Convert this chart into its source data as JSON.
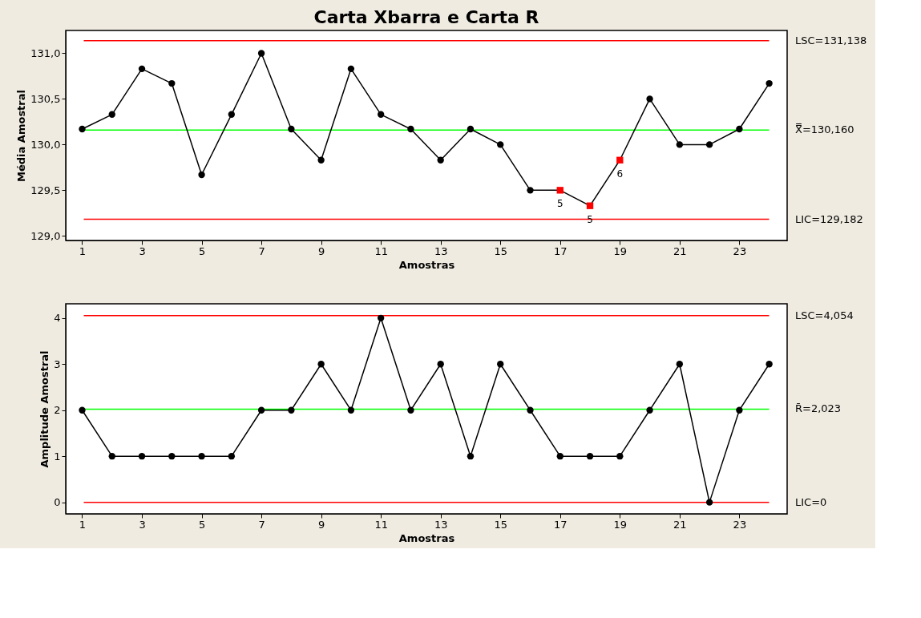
{
  "chart_data": [
    {
      "type": "line",
      "title": "Carta Xbarra e Carta R",
      "xlabel": "Amostras",
      "ylabel": "Média Amostral",
      "x": [
        1,
        2,
        3,
        4,
        5,
        6,
        7,
        8,
        9,
        10,
        11,
        12,
        13,
        14,
        15,
        16,
        17,
        18,
        19,
        20,
        21,
        22,
        23,
        24
      ],
      "series": [
        {
          "color": "#000000",
          "colors": [
            "#000000",
            "#000000",
            "#000000",
            "#000000",
            "#000000",
            "#000000",
            "#000000",
            "#000000",
            "#000000",
            "#000000",
            "#000000",
            "#000000",
            "#000000",
            "#000000",
            "#000000",
            "#000000",
            "#ff0000",
            "#ff0000",
            "#ff0000",
            "#000000",
            "#000000",
            "#000000",
            "#000000",
            "#000000"
          ],
          "values": [
            130.17,
            130.33,
            130.83,
            130.67,
            129.67,
            130.33,
            131.0,
            130.17,
            129.83,
            130.83,
            130.33,
            130.17,
            129.83,
            130.17,
            130.0,
            129.5,
            129.5,
            129.33,
            129.83,
            130.5,
            130.0,
            130.0,
            130.17,
            130.67
          ]
        }
      ],
      "xlim": [
        0.45,
        24.6
      ],
      "xticks": [
        1,
        3,
        5,
        7,
        9,
        11,
        13,
        15,
        17,
        19,
        21,
        23
      ],
      "ylim": [
        128.95,
        131.25
      ],
      "yticks": [
        {
          "value": 129.0,
          "label": "129,0"
        },
        {
          "value": 129.5,
          "label": "129,5"
        },
        {
          "value": 130.0,
          "label": "130,0"
        },
        {
          "value": 130.5,
          "label": "130,5"
        },
        {
          "value": 131.0,
          "label": "131,0"
        }
      ],
      "ref_lines": [
        {
          "axis": "y",
          "value": 131.138,
          "label": "LSC=131,138",
          "color": "#ff0000"
        },
        {
          "axis": "y",
          "value": 130.16,
          "label": "X̿=130,160",
          "color": "#00ff00"
        },
        {
          "axis": "y",
          "value": 129.182,
          "label": "LIC=129,182",
          "color": "#ff0000"
        }
      ],
      "annotations": [
        {
          "text": "5",
          "x": 17,
          "y": 129.5
        },
        {
          "text": "5",
          "x": 18,
          "y": 129.33
        },
        {
          "text": "6",
          "x": 19,
          "y": 129.83
        }
      ],
      "marker": "circle",
      "line_style": "solid"
    },
    {
      "type": "line",
      "xlabel": "Amostras",
      "ylabel": "Amplitude Amostral",
      "x": [
        1,
        2,
        3,
        4,
        5,
        6,
        7,
        8,
        9,
        10,
        11,
        12,
        13,
        14,
        15,
        16,
        17,
        18,
        19,
        20,
        21,
        22,
        23,
        24
      ],
      "series": [
        {
          "color": "#000000",
          "values": [
            2,
            1,
            1,
            1,
            1,
            1,
            2,
            2,
            3,
            2,
            4,
            2,
            3,
            1,
            3,
            2,
            1,
            1,
            1,
            2,
            3,
            0,
            2,
            3
          ]
        }
      ],
      "xlim": [
        0.45,
        24.6
      ],
      "xticks": [
        1,
        3,
        5,
        7,
        9,
        11,
        13,
        15,
        17,
        19,
        21,
        23
      ],
      "ylim": [
        -0.25,
        4.31
      ],
      "yticks": [
        0,
        1,
        2,
        3,
        4
      ],
      "ref_lines": [
        {
          "axis": "y",
          "value": 4.054,
          "label": "LSC=4,054",
          "color": "#ff0000"
        },
        {
          "axis": "y",
          "value": 2.023,
          "label": "R̄=2,023",
          "color": "#00ff00"
        },
        {
          "axis": "y",
          "value": 0,
          "label": "LIC=0",
          "color": "#ff0000"
        }
      ],
      "marker": "circle",
      "line_style": "solid"
    }
  ]
}
